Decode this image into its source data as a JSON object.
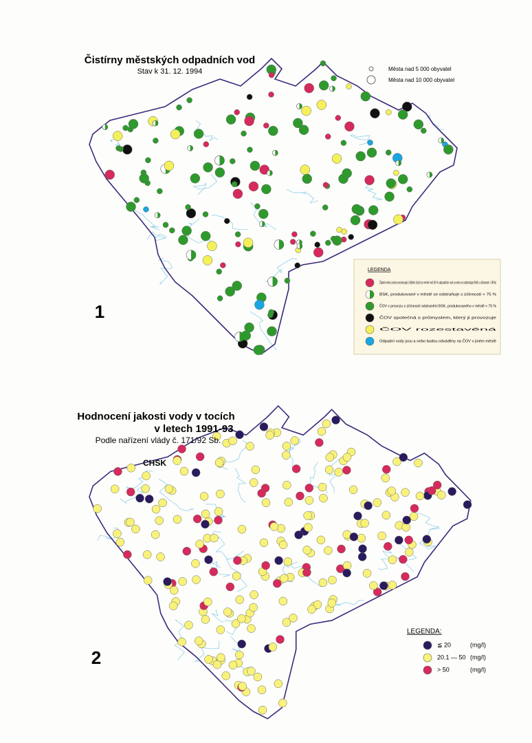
{
  "map1": {
    "title": "Čistírny městských odpadních vod",
    "subtitle": "Stav k 31. 12. 1994",
    "number": "1",
    "size_legend": [
      "Města nad 5 000 obyvatel",
      "Města nad 10 000 obyvatel"
    ],
    "legend": {
      "title": "LEGENDA",
      "items": [
        {
          "label": "Žádné nebo zcela nevyhovující čištění (čistí se méně než 50 % odpadních vod a nebo se odstraňuje BSK s účinností < 35%)",
          "color": "#d62a5c"
        },
        {
          "label": "BSK, produkované v městě se odstraňuje s účinností < 75 %",
          "color": "#ffffff"
        },
        {
          "label": "ČOV v provozu s účinností odstranění BSK, produkovaného v městě > 75 %",
          "color": "#2e9a2c"
        },
        {
          "label": "ČOV společná s průmyslem, který ji provozuje",
          "color": "#111111"
        },
        {
          "label": "ČOV rozestavěná",
          "color": "#f4f05a"
        },
        {
          "label": "Odpadní vody jsou a nebo budou odváděny na ČOV v jiném městě",
          "color": "#1aa6e0"
        }
      ]
    }
  },
  "map2": {
    "title_lines": [
      "Hodnocení jakosti vody v tocích",
      "v letech 1991-93"
    ],
    "subtitle": "Podle nařízení vlády č. 171/92 Sb.",
    "region_label": "CHSK",
    "number": "2",
    "legend": {
      "title": "LEGENDA:",
      "items": [
        {
          "label": "≦ 20",
          "unit": "(mg/l)",
          "color": "#2a1a5e"
        },
        {
          "label": "20.1 — 50",
          "unit": "(mg/l)",
          "color": "#f8f27a"
        },
        {
          "label": "> 50",
          "unit": "(mg/l)",
          "color": "#d62a5c"
        }
      ]
    }
  }
}
